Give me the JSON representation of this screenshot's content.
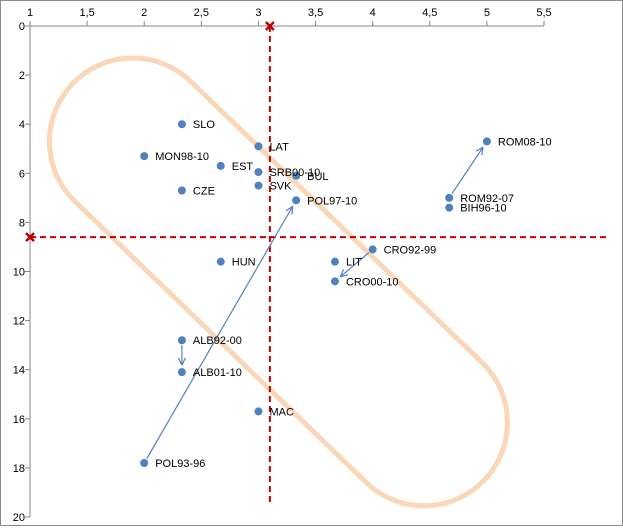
{
  "chart_data": {
    "type": "scatter",
    "title": "",
    "xlabel": "",
    "ylabel": "",
    "xlim": [
      1,
      5.5
    ],
    "ylim": [
      0,
      20
    ],
    "y_inverted": true,
    "x_axis_position": "top",
    "x_ticks": [
      1,
      1.5,
      2,
      2.5,
      3,
      3.5,
      4,
      4.5,
      5,
      5.5
    ],
    "x_tick_labels": [
      "1",
      "1,5",
      "2",
      "2,5",
      "3",
      "3,5",
      "4",
      "4,5",
      "5",
      "5,5"
    ],
    "y_ticks": [
      0,
      2,
      4,
      6,
      8,
      10,
      12,
      14,
      16,
      18,
      20
    ],
    "y_tick_labels": [
      "0",
      "2",
      "4",
      "6",
      "8",
      "10",
      "12",
      "14",
      "16",
      "18",
      "20"
    ],
    "grid": false,
    "point_color": "#4f81bd",
    "points": [
      {
        "label": "SLO",
        "x": 2.33,
        "y": 4.0
      },
      {
        "label": "LAT",
        "x": 3.0,
        "y": 4.9
      },
      {
        "label": "MON98-10",
        "x": 2.0,
        "y": 5.3
      },
      {
        "label": "EST",
        "x": 2.67,
        "y": 5.7
      },
      {
        "label": "SRB00-10",
        "x": 3.0,
        "y": 5.95
      },
      {
        "label": "BUL",
        "x": 3.33,
        "y": 6.1
      },
      {
        "label": "SVK",
        "x": 3.0,
        "y": 6.5
      },
      {
        "label": "CZE",
        "x": 2.33,
        "y": 6.7
      },
      {
        "label": "POL97-10",
        "x": 3.33,
        "y": 7.1
      },
      {
        "label": "HUN",
        "x": 2.67,
        "y": 9.6
      },
      {
        "label": "LIT",
        "x": 3.67,
        "y": 9.6
      },
      {
        "label": "CRO92-99",
        "x": 4.0,
        "y": 9.1
      },
      {
        "label": "CRO00-10",
        "x": 3.67,
        "y": 10.4
      },
      {
        "label": "ALB92-00",
        "x": 2.33,
        "y": 12.8
      },
      {
        "label": "ALB01-10",
        "x": 2.33,
        "y": 14.1
      },
      {
        "label": "MAC",
        "x": 3.0,
        "y": 15.7
      },
      {
        "label": "POL93-96",
        "x": 2.0,
        "y": 17.8
      },
      {
        "label": "ROM08-10",
        "x": 5.0,
        "y": 4.7
      },
      {
        "label": "ROM92-07",
        "x": 4.67,
        "y": 7.0
      },
      {
        "label": "BIH96-10",
        "x": 4.67,
        "y": 7.4
      }
    ],
    "arrows": [
      {
        "from": "POL93-96",
        "to": "POL97-10"
      },
      {
        "from": "ROM92-07",
        "to": "ROM08-10"
      },
      {
        "from": "CRO92-99",
        "to": "CRO00-10"
      },
      {
        "from": "ALB92-00",
        "to": "ALB01-10"
      }
    ],
    "reference_lines": {
      "color": "#c00000",
      "vertical_x": 3.1,
      "horizontal_y": 8.6
    },
    "highlight_capsule": {
      "color": "#fad7b8",
      "from": [
        1.9,
        4.7
      ],
      "to": [
        4.45,
        16.15
      ],
      "radius_x": 0.73
    }
  }
}
